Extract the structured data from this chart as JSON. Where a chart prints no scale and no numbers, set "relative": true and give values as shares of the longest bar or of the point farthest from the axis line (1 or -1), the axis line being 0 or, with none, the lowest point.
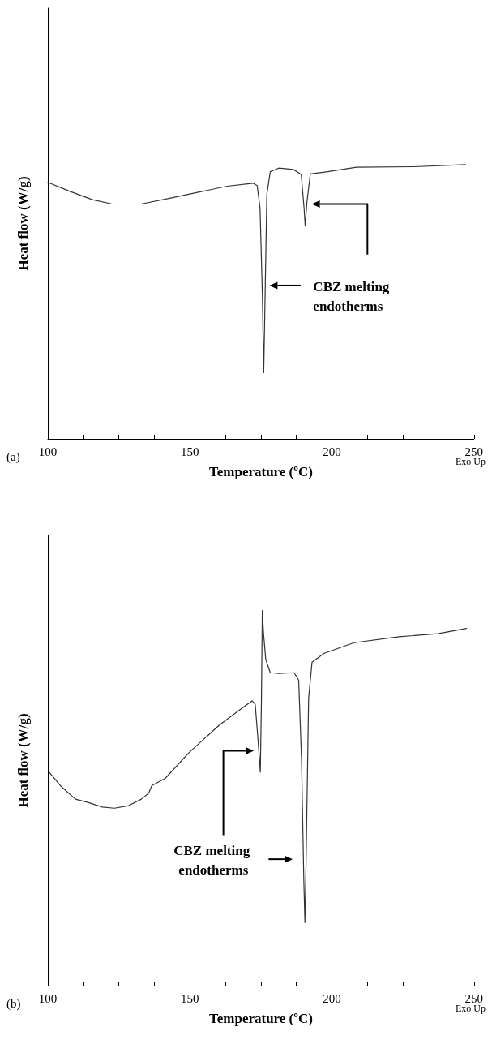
{
  "chart_data": [
    {
      "type": "line",
      "relative": true,
      "xlabel": "Temperature (ºC)",
      "ylabel": "Heat flow (W/g)",
      "annotations": [
        "(a)",
        "Exo Up",
        "CBZ melting endotherms"
      ],
      "xlim": [
        100,
        250
      ],
      "xticks": [
        100,
        {
          "value": 112.5,
          "label": null
        },
        {
          "value": 125,
          "label": null
        },
        {
          "value": 137.5,
          "label": null
        },
        150,
        {
          "value": 162.5,
          "label": null
        },
        {
          "value": 175,
          "label": null
        },
        {
          "value": 187.5,
          "label": null
        },
        200,
        {
          "value": 212.5,
          "label": null
        },
        {
          "value": 225,
          "label": null
        },
        {
          "value": 237.5,
          "label": null
        },
        250
      ],
      "grid": false,
      "marker": "none",
      "line_style": "solid",
      "series": [
        {
          "color": "#333333",
          "x": [
            100,
            107.6,
            115.7,
            122.7,
            132.8,
            142.9,
            153,
            163.1,
            172.2,
            173.7,
            174.7,
            175.5,
            176,
            176.5,
            177.1,
            178.3,
            181.3,
            186.4,
            189.2,
            190.2,
            190.6,
            191.2,
            192.4,
            198.5,
            208.6,
            228.8,
            247
          ],
          "values": [
            0.935,
            0.903,
            0.872,
            0.856,
            0.856,
            0.877,
            0.899,
            0.921,
            0.932,
            0.923,
            0.841,
            0.533,
            0.241,
            0.533,
            0.892,
            0.974,
            0.987,
            0.982,
            0.964,
            0.841,
            0.777,
            0.862,
            0.966,
            0.974,
            0.99,
            0.992,
            1.0
          ]
        }
      ]
    },
    {
      "type": "line",
      "relative": true,
      "xlabel": "Temperature (ºC)",
      "ylabel": "Heat flow (W/g)",
      "annotations": [
        "(b)",
        "Exo Up",
        "CBZ melting endotherms"
      ],
      "xlim": [
        100,
        250
      ],
      "xticks": [
        100,
        {
          "value": 112.5,
          "label": null
        },
        {
          "value": 125,
          "label": null
        },
        {
          "value": 137.5,
          "label": null
        },
        150,
        {
          "value": 162.5,
          "label": null
        },
        {
          "value": 175,
          "label": null
        },
        {
          "value": 187.5,
          "label": null
        },
        200,
        {
          "value": 212.5,
          "label": null
        },
        {
          "value": 225,
          "label": null
        },
        {
          "value": 237.5,
          "label": null
        },
        250
      ],
      "grid": false,
      "marker": "none",
      "line_style": "solid",
      "series": [
        {
          "color": "#333333",
          "x": [
            100.5,
            104.4,
            109.7,
            113.9,
            119.2,
            123.4,
            128.2,
            132.9,
            135.5,
            136.6,
            141.4,
            149.8,
            160.3,
            168.8,
            171.9,
            173,
            174,
            174.8,
            175.2,
            175.5,
            175.9,
            176.7,
            178.3,
            181.4,
            186.7,
            188.3,
            189.3,
            190.1,
            190.5,
            190.9,
            191.8,
            193,
            197.3,
            207.8,
            223.6,
            237.3,
            247.4
          ],
          "values": [
            0.569,
            0.533,
            0.497,
            0.489,
            0.476,
            0.473,
            0.479,
            0.497,
            0.513,
            0.533,
            0.553,
            0.622,
            0.694,
            0.742,
            0.759,
            0.75,
            0.654,
            0.569,
            0.766,
            1.0,
            0.942,
            0.87,
            0.834,
            0.832,
            0.834,
            0.814,
            0.605,
            0.285,
            0.168,
            0.325,
            0.766,
            0.862,
            0.886,
            0.914,
            0.93,
            0.938,
            0.952
          ]
        }
      ]
    }
  ]
}
